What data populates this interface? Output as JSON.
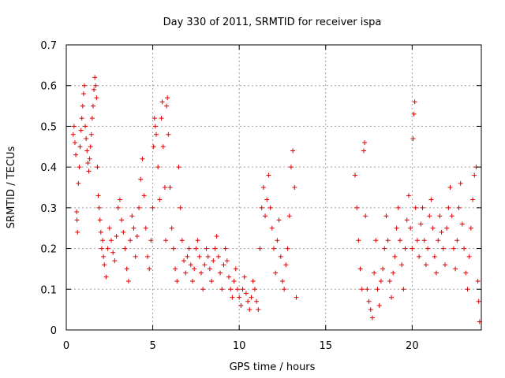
{
  "chart_data": {
    "type": "scatter",
    "title": "Day 330 of 2011, SRMTID for receiver ispa",
    "xlabel": "GPS time / hours",
    "ylabel": "SRMTID / TECUs",
    "xlim": [
      0,
      24
    ],
    "ylim": [
      0,
      0.7
    ],
    "xticks": [
      0,
      5,
      10,
      15,
      20
    ],
    "yticks": [
      0,
      0.1,
      0.2,
      0.3,
      0.4,
      0.5,
      0.6,
      0.7
    ],
    "grid": true,
    "marker": "plus",
    "color": "#e00000",
    "series": [
      {
        "name": "SRMTID",
        "points": [
          [
            0.4,
            0.48
          ],
          [
            0.45,
            0.5
          ],
          [
            0.5,
            0.46
          ],
          [
            0.55,
            0.43
          ],
          [
            0.6,
            0.29
          ],
          [
            0.62,
            0.27
          ],
          [
            0.65,
            0.24
          ],
          [
            0.7,
            0.36
          ],
          [
            0.75,
            0.4
          ],
          [
            0.8,
            0.45
          ],
          [
            0.85,
            0.49
          ],
          [
            0.9,
            0.52
          ],
          [
            0.95,
            0.55
          ],
          [
            1.0,
            0.58
          ],
          [
            1.05,
            0.6
          ],
          [
            1.1,
            0.5
          ],
          [
            1.15,
            0.47
          ],
          [
            1.2,
            0.44
          ],
          [
            1.25,
            0.41
          ],
          [
            1.3,
            0.39
          ],
          [
            1.35,
            0.42
          ],
          [
            1.4,
            0.45
          ],
          [
            1.45,
            0.48
          ],
          [
            1.5,
            0.52
          ],
          [
            1.55,
            0.55
          ],
          [
            1.6,
            0.59
          ],
          [
            1.65,
            0.62
          ],
          [
            1.7,
            0.6
          ],
          [
            1.75,
            0.57
          ],
          [
            1.8,
            0.4
          ],
          [
            1.85,
            0.33
          ],
          [
            1.9,
            0.3
          ],
          [
            1.95,
            0.27
          ],
          [
            2.0,
            0.24
          ],
          [
            2.05,
            0.2
          ],
          [
            2.1,
            0.22
          ],
          [
            2.15,
            0.18
          ],
          [
            2.2,
            0.16
          ],
          [
            2.3,
            0.13
          ],
          [
            2.4,
            0.2
          ],
          [
            2.5,
            0.25
          ],
          [
            2.6,
            0.22
          ],
          [
            2.7,
            0.19
          ],
          [
            2.8,
            0.17
          ],
          [
            2.9,
            0.23
          ],
          [
            3.0,
            0.3
          ],
          [
            3.1,
            0.32
          ],
          [
            3.2,
            0.27
          ],
          [
            3.3,
            0.24
          ],
          [
            3.4,
            0.2
          ],
          [
            3.5,
            0.15
          ],
          [
            3.6,
            0.12
          ],
          [
            3.7,
            0.22
          ],
          [
            3.8,
            0.28
          ],
          [
            3.9,
            0.25
          ],
          [
            4.0,
            0.18
          ],
          [
            4.1,
            0.23
          ],
          [
            4.2,
            0.3
          ],
          [
            4.3,
            0.37
          ],
          [
            4.4,
            0.42
          ],
          [
            4.5,
            0.33
          ],
          [
            4.6,
            0.25
          ],
          [
            4.7,
            0.18
          ],
          [
            4.8,
            0.15
          ],
          [
            4.9,
            0.22
          ],
          [
            5.0,
            0.3
          ],
          [
            5.05,
            0.45
          ],
          [
            5.1,
            0.52
          ],
          [
            5.15,
            0.5
          ],
          [
            5.2,
            0.48
          ],
          [
            5.3,
            0.4
          ],
          [
            5.4,
            0.32
          ],
          [
            5.5,
            0.52
          ],
          [
            5.55,
            0.56
          ],
          [
            5.6,
            0.45
          ],
          [
            5.7,
            0.35
          ],
          [
            5.75,
            0.22
          ],
          [
            5.8,
            0.55
          ],
          [
            5.85,
            0.57
          ],
          [
            5.9,
            0.48
          ],
          [
            6.0,
            0.35
          ],
          [
            6.1,
            0.25
          ],
          [
            6.2,
            0.2
          ],
          [
            6.3,
            0.15
          ],
          [
            6.4,
            0.12
          ],
          [
            6.5,
            0.4
          ],
          [
            6.6,
            0.3
          ],
          [
            6.7,
            0.22
          ],
          [
            6.8,
            0.17
          ],
          [
            6.9,
            0.14
          ],
          [
            7.0,
            0.18
          ],
          [
            7.1,
            0.2
          ],
          [
            7.2,
            0.16
          ],
          [
            7.3,
            0.12
          ],
          [
            7.4,
            0.15
          ],
          [
            7.5,
            0.2
          ],
          [
            7.6,
            0.22
          ],
          [
            7.7,
            0.18
          ],
          [
            7.8,
            0.14
          ],
          [
            7.9,
            0.1
          ],
          [
            8.0,
            0.16
          ],
          [
            8.1,
            0.2
          ],
          [
            8.2,
            0.18
          ],
          [
            8.3,
            0.15
          ],
          [
            8.4,
            0.12
          ],
          [
            8.5,
            0.17
          ],
          [
            8.6,
            0.2
          ],
          [
            8.7,
            0.23
          ],
          [
            8.8,
            0.18
          ],
          [
            8.9,
            0.14
          ],
          [
            9.0,
            0.1
          ],
          [
            9.1,
            0.16
          ],
          [
            9.2,
            0.2
          ],
          [
            9.3,
            0.17
          ],
          [
            9.4,
            0.13
          ],
          [
            9.5,
            0.1
          ],
          [
            9.6,
            0.08
          ],
          [
            9.7,
            0.12
          ],
          [
            9.8,
            0.15
          ],
          [
            9.9,
            0.1
          ],
          [
            10.0,
            0.08
          ],
          [
            10.1,
            0.06
          ],
          [
            10.2,
            0.1
          ],
          [
            10.3,
            0.13
          ],
          [
            10.4,
            0.09
          ],
          [
            10.5,
            0.07
          ],
          [
            10.6,
            0.05
          ],
          [
            10.7,
            0.08
          ],
          [
            10.8,
            0.12
          ],
          [
            10.9,
            0.1
          ],
          [
            11.0,
            0.07
          ],
          [
            11.1,
            0.05
          ],
          [
            11.2,
            0.2
          ],
          [
            11.3,
            0.3
          ],
          [
            11.4,
            0.35
          ],
          [
            11.5,
            0.28
          ],
          [
            11.6,
            0.32
          ],
          [
            11.7,
            0.38
          ],
          [
            11.8,
            0.3
          ],
          [
            11.9,
            0.25
          ],
          [
            12.0,
            0.2
          ],
          [
            12.1,
            0.14
          ],
          [
            12.2,
            0.22
          ],
          [
            12.3,
            0.27
          ],
          [
            12.4,
            0.18
          ],
          [
            12.5,
            0.12
          ],
          [
            12.6,
            0.1
          ],
          [
            12.7,
            0.16
          ],
          [
            12.8,
            0.2
          ],
          [
            12.9,
            0.28
          ],
          [
            13.0,
            0.4
          ],
          [
            13.1,
            0.44
          ],
          [
            13.2,
            0.35
          ],
          [
            13.3,
            0.08
          ],
          [
            16.7,
            0.38
          ],
          [
            16.8,
            0.3
          ],
          [
            16.9,
            0.22
          ],
          [
            17.0,
            0.15
          ],
          [
            17.1,
            0.1
          ],
          [
            17.2,
            0.44
          ],
          [
            17.25,
            0.46
          ],
          [
            17.3,
            0.28
          ],
          [
            17.4,
            0.1
          ],
          [
            17.5,
            0.07
          ],
          [
            17.6,
            0.05
          ],
          [
            17.7,
            0.03
          ],
          [
            17.8,
            0.14
          ],
          [
            17.9,
            0.22
          ],
          [
            18.0,
            0.1
          ],
          [
            18.1,
            0.06
          ],
          [
            18.2,
            0.12
          ],
          [
            18.3,
            0.15
          ],
          [
            18.4,
            0.2
          ],
          [
            18.5,
            0.28
          ],
          [
            18.6,
            0.22
          ],
          [
            18.7,
            0.12
          ],
          [
            18.8,
            0.08
          ],
          [
            18.9,
            0.14
          ],
          [
            19.0,
            0.18
          ],
          [
            19.1,
            0.25
          ],
          [
            19.2,
            0.3
          ],
          [
            19.3,
            0.22
          ],
          [
            19.4,
            0.16
          ],
          [
            19.5,
            0.1
          ],
          [
            19.6,
            0.2
          ],
          [
            19.7,
            0.27
          ],
          [
            19.8,
            0.33
          ],
          [
            19.9,
            0.25
          ],
          [
            20.0,
            0.2
          ],
          [
            20.05,
            0.47
          ],
          [
            20.1,
            0.53
          ],
          [
            20.15,
            0.56
          ],
          [
            20.2,
            0.3
          ],
          [
            20.3,
            0.22
          ],
          [
            20.4,
            0.18
          ],
          [
            20.5,
            0.26
          ],
          [
            20.6,
            0.3
          ],
          [
            20.7,
            0.22
          ],
          [
            20.8,
            0.16
          ],
          [
            20.9,
            0.2
          ],
          [
            21.0,
            0.28
          ],
          [
            21.1,
            0.32
          ],
          [
            21.2,
            0.25
          ],
          [
            21.3,
            0.18
          ],
          [
            21.4,
            0.14
          ],
          [
            21.5,
            0.22
          ],
          [
            21.6,
            0.28
          ],
          [
            21.7,
            0.24
          ],
          [
            21.8,
            0.2
          ],
          [
            21.9,
            0.16
          ],
          [
            22.0,
            0.25
          ],
          [
            22.1,
            0.3
          ],
          [
            22.2,
            0.35
          ],
          [
            22.3,
            0.28
          ],
          [
            22.4,
            0.2
          ],
          [
            22.5,
            0.15
          ],
          [
            22.6,
            0.22
          ],
          [
            22.7,
            0.3
          ],
          [
            22.8,
            0.36
          ],
          [
            22.9,
            0.26
          ],
          [
            23.0,
            0.2
          ],
          [
            23.1,
            0.14
          ],
          [
            23.2,
            0.1
          ],
          [
            23.3,
            0.18
          ],
          [
            23.4,
            0.25
          ],
          [
            23.5,
            0.32
          ],
          [
            23.6,
            0.38
          ],
          [
            23.7,
            0.4
          ],
          [
            23.8,
            0.12
          ],
          [
            23.85,
            0.07
          ],
          [
            23.9,
            0.02
          ]
        ]
      }
    ]
  }
}
